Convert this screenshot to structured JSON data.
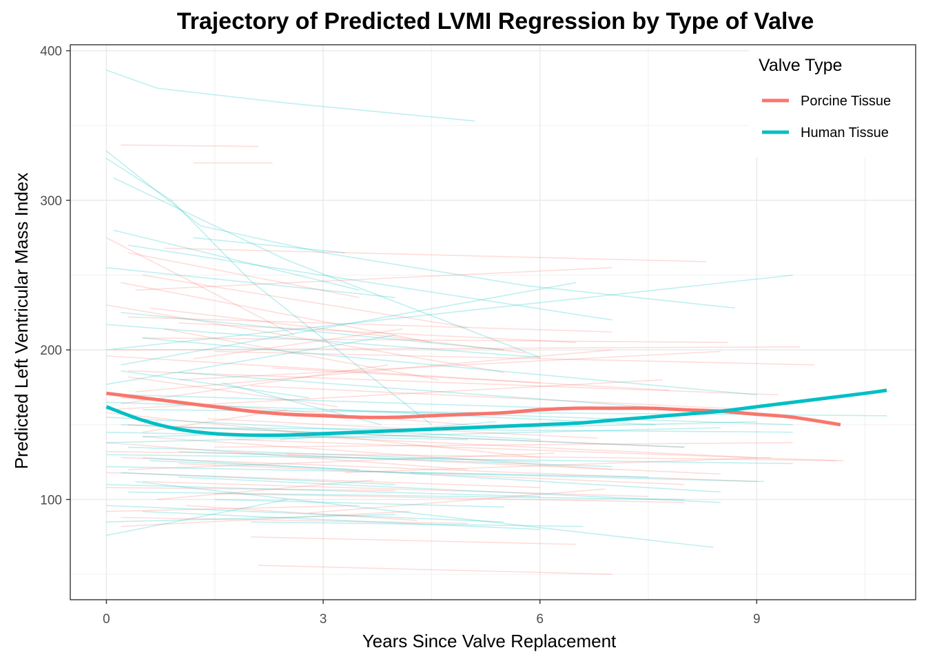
{
  "chart_data": {
    "type": "line",
    "title": "Trajectory of Predicted LVMI Regression by Type of Valve",
    "xlabel": "Years Since Valve Replacement",
    "ylabel": "Predicted Left Ventricular Mass Index",
    "xlim": [
      -0.5,
      11.2
    ],
    "ylim": [
      33,
      404
    ],
    "xticks": [
      0,
      3,
      6,
      9
    ],
    "yticks": [
      100,
      200,
      300,
      400
    ],
    "grid": true,
    "legend": {
      "title": "Valve Type",
      "placement": "top-right",
      "entries": [
        "Porcine Tissue",
        "Human Tissue"
      ]
    },
    "colors": {
      "porcine": "#F8766D",
      "human": "#00BFC4"
    },
    "smooth_series": [
      {
        "name": "Porcine Tissue",
        "color": "#F8766D",
        "points": [
          [
            0,
            171
          ],
          [
            0.5,
            168
          ],
          [
            1,
            165
          ],
          [
            1.5,
            162
          ],
          [
            2,
            159
          ],
          [
            2.5,
            157
          ],
          [
            3,
            156
          ],
          [
            3.5,
            155
          ],
          [
            4,
            155
          ],
          [
            4.5,
            156
          ],
          [
            5,
            157
          ],
          [
            5.5,
            158
          ],
          [
            6,
            160
          ],
          [
            6.5,
            161
          ],
          [
            7,
            161
          ],
          [
            7.5,
            161
          ],
          [
            8,
            160
          ],
          [
            8.5,
            159
          ],
          [
            9,
            157
          ],
          [
            9.5,
            155
          ],
          [
            10.16,
            150
          ]
        ]
      },
      {
        "name": "Human Tissue",
        "color": "#00BFC4",
        "points": [
          [
            0,
            162
          ],
          [
            0.5,
            153
          ],
          [
            1,
            147
          ],
          [
            1.5,
            144
          ],
          [
            2,
            143
          ],
          [
            2.5,
            143
          ],
          [
            3,
            144
          ],
          [
            3.5,
            145
          ],
          [
            4,
            146
          ],
          [
            4.5,
            147
          ],
          [
            5,
            148
          ],
          [
            5.5,
            149
          ],
          [
            6,
            150
          ],
          [
            6.5,
            151
          ],
          [
            7,
            153
          ],
          [
            7.5,
            155
          ],
          [
            8,
            157
          ],
          [
            8.5,
            159
          ],
          [
            9,
            162
          ],
          [
            9.5,
            165
          ],
          [
            10,
            168
          ],
          [
            10.5,
            171
          ],
          [
            10.8,
            173
          ]
        ]
      }
    ],
    "subject_trajectories": {
      "porcine": [
        [
          0.2,
          337,
          2.1,
          336
        ],
        [
          1.2,
          325,
          2.3,
          325
        ],
        [
          0,
          275,
          2.6,
          210
        ],
        [
          0.3,
          265,
          3.5,
          235
        ],
        [
          0.5,
          250,
          5,
          215
        ],
        [
          0.8,
          268,
          8.3,
          259
        ],
        [
          0.2,
          245,
          4.5,
          205
        ],
        [
          0,
          230,
          5.5,
          185
        ],
        [
          0.3,
          222,
          7,
          212
        ],
        [
          1,
          218,
          6.5,
          205
        ],
        [
          0.5,
          208,
          8.6,
          205
        ],
        [
          1.5,
          199,
          9.8,
          190
        ],
        [
          0,
          196,
          6,
          178
        ],
        [
          0.3,
          186,
          9.3,
          170
        ],
        [
          1,
          180,
          8.5,
          199
        ],
        [
          2,
          176,
          9,
          160
        ],
        [
          0.4,
          172,
          7,
          200
        ],
        [
          0.2,
          168,
          5,
          150
        ],
        [
          0,
          160,
          7.7,
          180
        ],
        [
          0,
          158,
          6,
          128
        ],
        [
          0.3,
          150,
          8,
          135
        ],
        [
          1,
          146,
          9,
          128
        ],
        [
          0.5,
          142,
          7,
          120
        ],
        [
          0,
          138,
          5,
          120
        ],
        [
          1.5,
          135,
          9.5,
          138
        ],
        [
          0,
          132,
          10.2,
          126
        ],
        [
          0.2,
          128,
          9,
          112
        ],
        [
          1,
          124,
          8,
          110
        ],
        [
          0,
          118,
          6,
          108
        ],
        [
          0.5,
          112,
          7.5,
          102
        ],
        [
          0,
          108,
          4,
          106
        ],
        [
          1.5,
          104,
          8,
          98
        ],
        [
          0,
          92,
          3.5,
          96
        ],
        [
          0.2,
          88,
          5,
          84
        ],
        [
          2,
          75,
          6.5,
          70
        ],
        [
          2.1,
          56,
          7,
          50
        ],
        [
          0.4,
          240,
          7,
          255
        ],
        [
          0.6,
          228,
          5.8,
          198
        ],
        [
          0.8,
          214,
          4.6,
          180
        ],
        [
          0.1,
          200,
          9.6,
          202
        ],
        [
          1.2,
          194,
          4.1,
          214
        ],
        [
          0.3,
          182,
          3.2,
          162
        ],
        [
          2.3,
          188,
          7.8,
          173
        ],
        [
          0.2,
          164,
          3.9,
          190
        ],
        [
          1.4,
          154,
          6.8,
          141
        ],
        [
          0.5,
          145,
          2.5,
          160
        ],
        [
          1.8,
          140,
          10.1,
          126
        ],
        [
          0.3,
          120,
          6.2,
          131
        ],
        [
          2.5,
          130,
          8.5,
          117
        ],
        [
          0.7,
          100,
          3.7,
          113
        ],
        [
          3.3,
          118,
          9.2,
          128
        ],
        [
          1.1,
          96,
          4.3,
          86
        ],
        [
          2.8,
          91,
          6.9,
          107
        ],
        [
          0.2,
          82,
          4.2,
          92
        ]
      ],
      "human": [
        [
          0,
          387,
          0.7,
          375
        ],
        [
          0.7,
          375,
          2.5,
          365
        ],
        [
          2.5,
          365,
          5.1,
          353
        ],
        [
          0,
          333,
          1.3,
          283
        ],
        [
          1.3,
          283,
          3,
          265
        ],
        [
          3,
          265,
          5.8,
          243
        ],
        [
          5.8,
          243,
          8.7,
          228
        ],
        [
          0,
          328,
          0.9,
          300
        ],
        [
          0.9,
          300,
          2,
          246
        ],
        [
          2,
          246,
          4.5,
          150
        ],
        [
          0.1,
          315,
          2.5,
          260
        ],
        [
          2.5,
          260,
          6,
          195
        ],
        [
          0.1,
          280,
          3.5,
          240
        ],
        [
          1.2,
          275,
          3.3,
          265
        ],
        [
          0.3,
          270,
          7,
          220
        ],
        [
          0,
          255,
          4,
          235
        ],
        [
          0.2,
          225,
          5.5,
          200
        ],
        [
          0,
          217,
          6,
          195
        ],
        [
          0.5,
          208,
          9,
          170
        ],
        [
          0,
          200,
          9.5,
          250
        ],
        [
          0.2,
          190,
          6.5,
          245
        ],
        [
          1,
          185,
          8,
          160
        ],
        [
          0,
          177,
          4,
          210
        ],
        [
          0.3,
          170,
          7,
          160
        ],
        [
          0,
          165,
          9.5,
          150
        ],
        [
          0.5,
          160,
          10.8,
          156
        ],
        [
          0,
          155,
          6,
          140
        ],
        [
          0.2,
          150,
          8,
          135
        ],
        [
          1,
          148,
          9.5,
          145
        ],
        [
          0,
          145,
          5,
          140
        ],
        [
          0.5,
          142,
          9,
          152
        ],
        [
          0,
          138,
          8.5,
          148
        ],
        [
          0.3,
          135,
          6,
          125
        ],
        [
          1,
          132,
          7,
          122
        ],
        [
          0,
          130,
          9.5,
          124
        ],
        [
          0.5,
          128,
          8.5,
          105
        ],
        [
          0,
          122,
          7.5,
          115
        ],
        [
          0.2,
          118,
          4,
          110
        ],
        [
          1,
          115,
          8.5,
          98
        ],
        [
          0,
          110,
          6,
          102
        ],
        [
          0.3,
          105,
          8,
          100
        ],
        [
          1.5,
          100,
          5.5,
          95
        ],
        [
          0,
          96,
          5.5,
          85
        ],
        [
          0.5,
          92,
          6,
          80
        ],
        [
          0,
          85,
          4,
          90
        ],
        [
          0,
          76,
          2.5,
          100
        ],
        [
          2,
          85,
          6.6,
          82
        ],
        [
          0.4,
          112,
          8.4,
          68
        ],
        [
          1.6,
          178,
          3.8,
          150
        ],
        [
          0.2,
          186,
          2.8,
          168
        ],
        [
          3.1,
          160,
          7.6,
          150
        ],
        [
          2.4,
          140,
          5.4,
          152
        ],
        [
          0.6,
          126,
          3.5,
          120
        ],
        [
          4.2,
          118,
          9.1,
          112
        ]
      ]
    }
  }
}
